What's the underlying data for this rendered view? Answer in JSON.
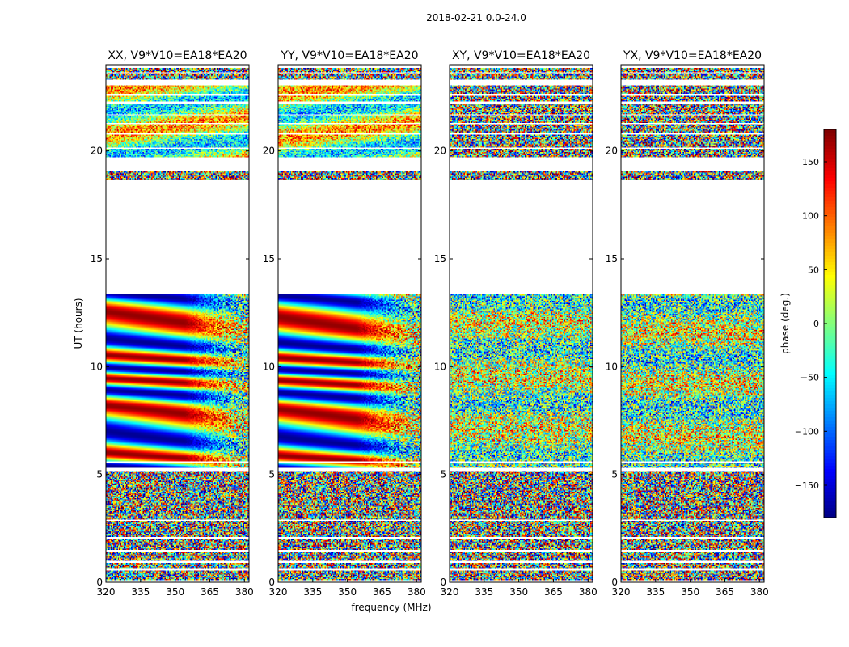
{
  "chart_data": {
    "type": "heatmap",
    "suptitle": "2018-02-21 0.0-24.0",
    "xlabel": "frequency (MHz)",
    "ylabel": "UT (hours)",
    "xlim": [
      320,
      382
    ],
    "ylim": [
      0,
      24
    ],
    "xticks": [
      "320",
      "335",
      "350",
      "365",
      "380"
    ],
    "yticks": [
      "0",
      "5",
      "10",
      "15",
      "20"
    ],
    "panels": [
      {
        "title": "XX, V9*V10=EA18*EA20",
        "style": "coherent",
        "phase": 0.0
      },
      {
        "title": "YY, V9*V10=EA18*EA20",
        "style": "coherent",
        "phase": 0.6
      },
      {
        "title": "XY, V9*V10=EA18*EA20",
        "style": "noisy",
        "phase": 1.3
      },
      {
        "title": "YX, V9*V10=EA18*EA20",
        "style": "noisy",
        "phase": 2.1
      }
    ],
    "colorbar": {
      "label": "phase (deg.)",
      "range": [
        -180,
        180
      ],
      "ticks": [
        "150",
        "100",
        "50",
        "0",
        "−50",
        "−100",
        "−150"
      ],
      "tick_values": [
        150,
        100,
        50,
        0,
        -50,
        -100,
        -150
      ],
      "colormap": "jet"
    },
    "flagged_ut_ranges": [
      [
        0.0,
        0.1
      ],
      [
        0.55,
        0.62
      ],
      [
        0.9,
        1.0
      ],
      [
        1.4,
        1.5
      ],
      [
        2.0,
        2.1
      ],
      [
        2.85,
        2.9
      ],
      [
        5.15,
        5.3
      ],
      [
        5.55,
        5.6
      ],
      [
        13.35,
        18.65
      ],
      [
        19.05,
        19.7
      ],
      [
        20.1,
        20.15
      ],
      [
        20.75,
        20.85
      ],
      [
        21.25,
        21.3
      ],
      [
        21.65,
        21.7
      ],
      [
        22.2,
        22.3
      ],
      [
        22.55,
        22.65
      ],
      [
        23.05,
        23.3
      ],
      [
        23.6,
        23.65
      ],
      [
        23.85,
        24.0
      ]
    ]
  }
}
